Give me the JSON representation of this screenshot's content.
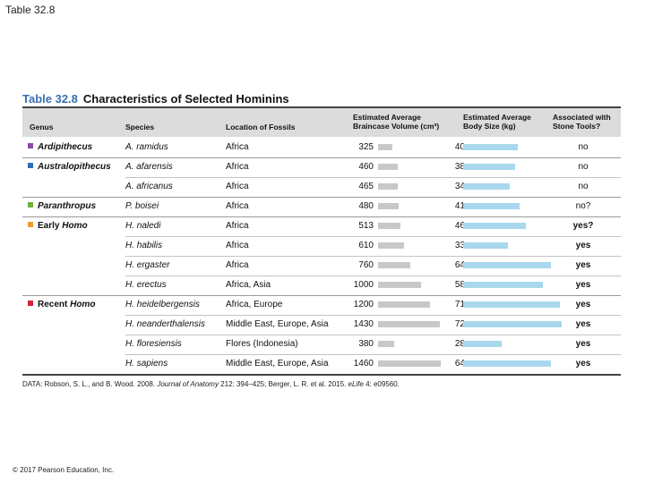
{
  "slide_title": "Table 32.8",
  "footer": "© 2017 Pearson Education, Inc.",
  "table": {
    "number": "Table 32.8",
    "caption": "Characteristics of Selected Hominins",
    "headers": {
      "genus": "Genus",
      "species": "Species",
      "location": "Location of Fossils",
      "brain_line1": "Estimated Average",
      "brain_line2": "Braincase Volume (cm³)",
      "body_line1": "Estimated Average",
      "body_line2": "Body Size (kg)",
      "tools_line1": "Associated with",
      "tools_line2": "Stone Tools?"
    },
    "genus_colors": {
      "ardipithecus": "#8e4aa8",
      "australopithecus": "#2e6db5",
      "paranthropus": "#6db33f",
      "early_homo": "#f29a2e",
      "recent_homo": "#d8213a"
    },
    "rows": [
      {
        "genus": "Ardipithecus",
        "genus_prefix": "",
        "genus_color": "#8e4aa8",
        "species": "A. ramidus",
        "location": "Africa",
        "braincase": "325",
        "body": "40",
        "tools": "no",
        "tools_bold": false
      },
      {
        "genus": "Australopithecus",
        "genus_prefix": "",
        "genus_color": "#2e6db5",
        "species": "A. afarensis",
        "location": "Africa",
        "braincase": "460",
        "body": "38",
        "tools": "no",
        "tools_bold": false
      },
      {
        "genus": "",
        "genus_prefix": "",
        "genus_color": "",
        "species": "A. africanus",
        "location": "Africa",
        "braincase": "465",
        "body": "34",
        "tools": "no",
        "tools_bold": false
      },
      {
        "genus": "Paranthropus",
        "genus_prefix": "",
        "genus_color": "#6db33f",
        "species": "P. boisei",
        "location": "Africa",
        "braincase": "480",
        "body": "41",
        "tools": "no?",
        "tools_bold": false
      },
      {
        "genus": "Homo",
        "genus_prefix": "Early ",
        "genus_color": "#f29a2e",
        "species": "H. naledi",
        "location": "Africa",
        "braincase": "513",
        "body": "46",
        "tools": "yes?",
        "tools_bold": true
      },
      {
        "genus": "",
        "genus_prefix": "",
        "genus_color": "",
        "species": "H. habilis",
        "location": "Africa",
        "braincase": "610",
        "body": "33",
        "tools": "yes",
        "tools_bold": true
      },
      {
        "genus": "",
        "genus_prefix": "",
        "genus_color": "",
        "species": "H. ergaster",
        "location": "Africa",
        "braincase": "760",
        "body": "64",
        "tools": "yes",
        "tools_bold": true
      },
      {
        "genus": "",
        "genus_prefix": "",
        "genus_color": "",
        "species": "H. erectus",
        "location": "Africa, Asia",
        "braincase": "1000",
        "body": "58",
        "tools": "yes",
        "tools_bold": true
      },
      {
        "genus": "Homo",
        "genus_prefix": "Recent ",
        "genus_color": "#d8213a",
        "species": "H. heidelbergensis",
        "location": "Africa, Europe",
        "braincase": "1200",
        "body": "71",
        "tools": "yes",
        "tools_bold": true
      },
      {
        "genus": "",
        "genus_prefix": "",
        "genus_color": "",
        "species": "H. neanderthalensis",
        "location": "Middle East, Europe, Asia",
        "braincase": "1430",
        "body": "72",
        "tools": "yes",
        "tools_bold": true
      },
      {
        "genus": "",
        "genus_prefix": "",
        "genus_color": "",
        "species": "H. floresiensis",
        "location": "Flores (Indonesia)",
        "braincase": "380",
        "body": "28",
        "tools": "yes",
        "tools_bold": true
      },
      {
        "genus": "",
        "genus_prefix": "",
        "genus_color": "",
        "species": "H. sapiens",
        "location": "Middle East, Europe, Asia",
        "braincase": "1460",
        "body": "64",
        "tools": "yes",
        "tools_bold": true
      }
    ],
    "data_note_pre": "DATA: Robson, S. L., and B. Wood. 2008. ",
    "data_note_journal": "Journal of Anatomy",
    "data_note_mid": " 212: 394–425; Berger, L. R. et al. 2015. ",
    "data_note_journal2": "eLife",
    "data_note_post": " 4: e09560.",
    "bar_colors": {
      "braincase": "#c8c8c8",
      "body": "#a9d8ee"
    }
  }
}
